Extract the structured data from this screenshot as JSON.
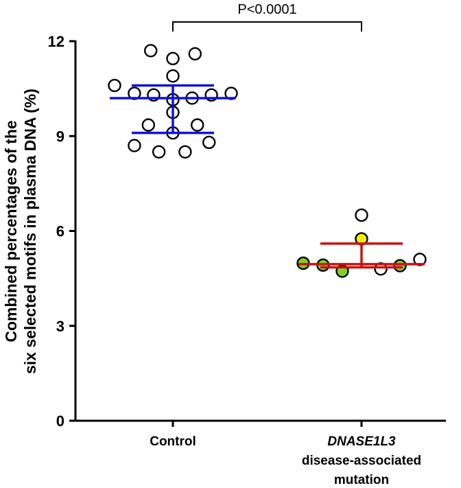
{
  "chart_data": {
    "type": "scatter",
    "title": "",
    "ylabel_line1": "Combined percentages of the",
    "ylabel_line2": "six selected motifs in plasma DNA (%)",
    "ylim": [
      0,
      12
    ],
    "yticks": [
      0,
      3,
      6,
      9,
      12
    ],
    "ytick_labels": [
      "0",
      "3",
      "6",
      "9",
      "12"
    ],
    "significance": {
      "label": "P<0.0001",
      "between": [
        "control",
        "mutation"
      ]
    },
    "groups": [
      {
        "id": "control",
        "label_lines": [
          "Control"
        ],
        "italic_first_line": false,
        "summary": {
          "center": 10.2,
          "upper": 10.6,
          "lower": 9.1,
          "color": "#1010e0"
        },
        "points": [
          {
            "offset": -0.38,
            "y": 11.7,
            "fill": "#ffffff"
          },
          {
            "offset": 0.38,
            "y": 11.6,
            "fill": "#ffffff"
          },
          {
            "offset": 0.0,
            "y": 11.45,
            "fill": "#ffffff"
          },
          {
            "offset": 0.0,
            "y": 10.9,
            "fill": "#ffffff"
          },
          {
            "offset": -1.0,
            "y": 10.6,
            "fill": "#ffffff"
          },
          {
            "offset": -0.66,
            "y": 10.35,
            "fill": "#ffffff"
          },
          {
            "offset": 1.0,
            "y": 10.35,
            "fill": "#ffffff"
          },
          {
            "offset": -0.33,
            "y": 10.3,
            "fill": "#ffffff"
          },
          {
            "offset": 0.66,
            "y": 10.3,
            "fill": "#ffffff"
          },
          {
            "offset": 0.33,
            "y": 10.2,
            "fill": "#ffffff"
          },
          {
            "offset": 0.0,
            "y": 10.15,
            "fill": "#ffffff"
          },
          {
            "offset": 0.0,
            "y": 9.75,
            "fill": "#ffffff"
          },
          {
            "offset": -0.42,
            "y": 9.35,
            "fill": "#ffffff"
          },
          {
            "offset": 0.42,
            "y": 9.35,
            "fill": "#ffffff"
          },
          {
            "offset": 0.0,
            "y": 9.1,
            "fill": "#ffffff"
          },
          {
            "offset": 0.62,
            "y": 8.8,
            "fill": "#ffffff"
          },
          {
            "offset": -0.66,
            "y": 8.7,
            "fill": "#ffffff"
          },
          {
            "offset": -0.24,
            "y": 8.5,
            "fill": "#ffffff"
          },
          {
            "offset": 0.21,
            "y": 8.5,
            "fill": "#ffffff"
          }
        ]
      },
      {
        "id": "mutation",
        "label_lines": [
          "DNASE1L3",
          "disease-associated",
          "mutation"
        ],
        "italic_first_line": true,
        "summary": {
          "center": 4.95,
          "upper": 5.6,
          "lower": 4.85,
          "color": "#cc1111"
        },
        "points": [
          {
            "offset": 0.0,
            "y": 6.5,
            "fill": "#ffffff"
          },
          {
            "offset": 0.0,
            "y": 5.75,
            "fill": "#f2f200"
          },
          {
            "offset": 1.0,
            "y": 5.1,
            "fill": "#ffffff"
          },
          {
            "offset": -1.0,
            "y": 4.98,
            "fill": "#7ed321"
          },
          {
            "offset": -0.66,
            "y": 4.92,
            "fill": "#7ed321"
          },
          {
            "offset": 0.66,
            "y": 4.9,
            "fill": "#7ed321"
          },
          {
            "offset": 0.33,
            "y": 4.8,
            "fill": "#ffffff"
          },
          {
            "offset": -0.33,
            "y": 4.73,
            "fill": "#7ed321"
          }
        ]
      }
    ]
  }
}
